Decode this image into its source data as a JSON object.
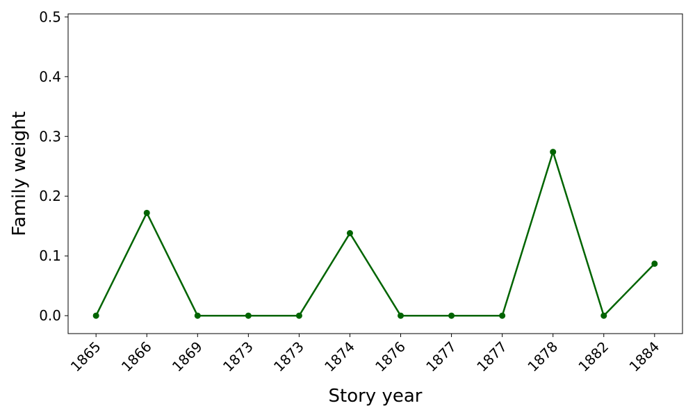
{
  "chart_data": {
    "type": "line",
    "x_label": "Story year",
    "y_label": "Family weight",
    "categories": [
      "1865",
      "1866",
      "1869",
      "1873",
      "1873",
      "1874",
      "1876",
      "1877",
      "1877",
      "1878",
      "1882",
      "1884"
    ],
    "series": [
      {
        "color": "#006400",
        "values": [
          0,
          0.172,
          0,
          0,
          0,
          0.138,
          0,
          0,
          0,
          0.274,
          0,
          0.087
        ]
      }
    ],
    "ylim": [
      -0.03,
      0.505
    ],
    "yticks": [
      {
        "value": 0,
        "label": "0.0"
      },
      {
        "value": 0.1,
        "label": "0.1"
      },
      {
        "value": 0.2,
        "label": "0.2"
      },
      {
        "value": 0.3,
        "label": "0.3"
      },
      {
        "value": 0.4,
        "label": "0.4"
      },
      {
        "value": 0.5,
        "label": "0.5"
      }
    ],
    "grid": false
  }
}
